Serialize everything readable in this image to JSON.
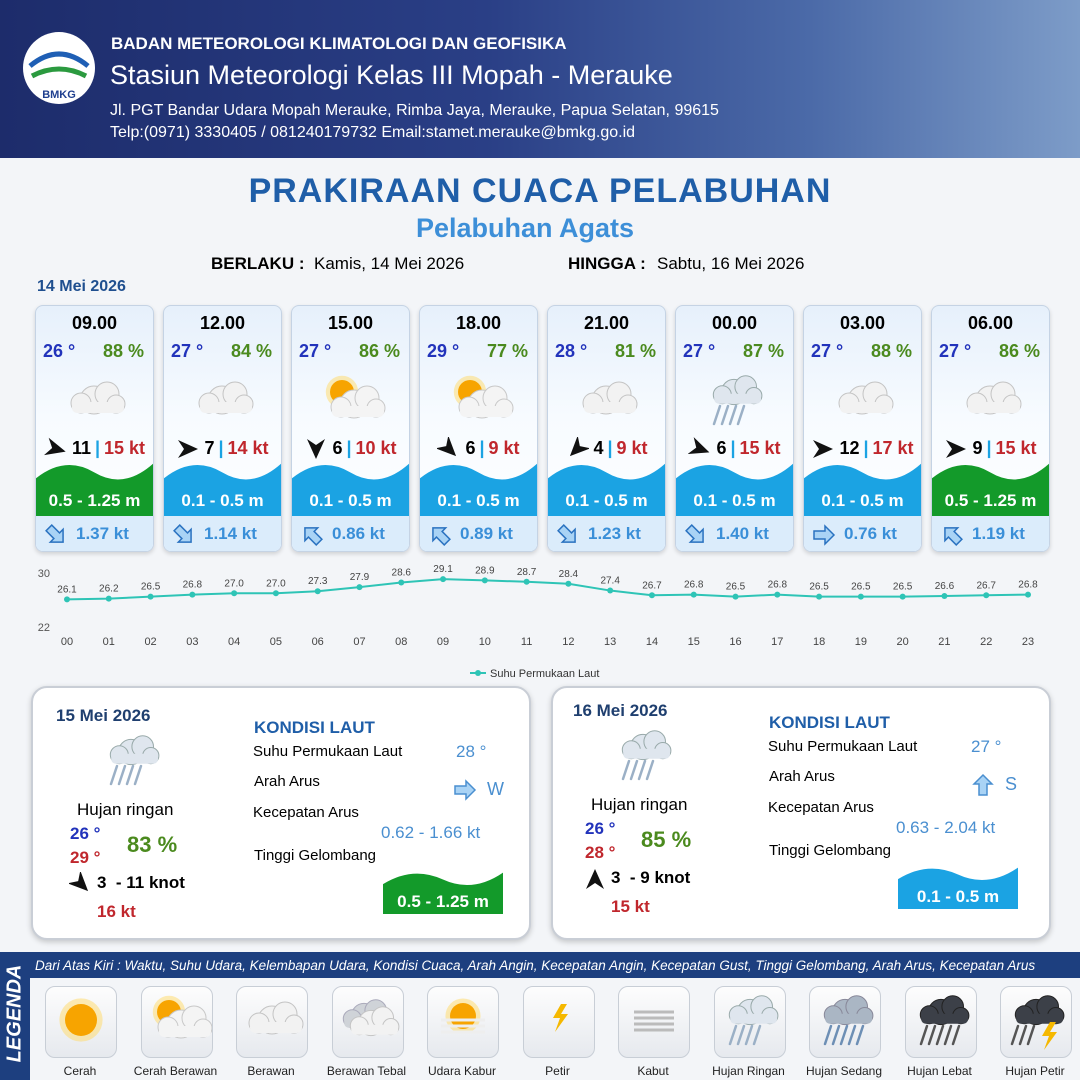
{
  "header": {
    "logo": "BMKG",
    "agency": "BADAN METEOROLOGI KLIMATOLOGI DAN GEOFISIKA",
    "station": "Stasiun Meteorologi Kelas III Mopah - Merauke",
    "address": "Jl. PGT Bandar Udara Mopah Merauke, Rimba Jaya, Merauke, Papua Selatan, 99615",
    "contact": "Telp:(0971) 3330405 / 081240179732  Email:stamet.merauke@bmkg.go.id"
  },
  "title": "PRAKIRAAN CUACA PELABUHAN",
  "subtitle": "Pelabuhan Agats",
  "validity": {
    "from_label": "BERLAKU :",
    "from": "Kamis, 14 Mei 2026",
    "to_label": "HINGGA :",
    "to": "Sabtu, 16 Mei 2026"
  },
  "day1": {
    "date": "14 Mei 2026",
    "slots": [
      {
        "time": "09.00",
        "temp": "26 °",
        "humidity": "88 %",
        "wind": 11,
        "gust": "15 kt",
        "wave": "0.5 - 1.25 m",
        "current": "1.37 kt"
      },
      {
        "time": "12.00",
        "temp": "27 °",
        "humidity": "84 %",
        "wind": 7,
        "gust": "14 kt",
        "wave": "0.1 - 0.5 m",
        "current": "1.14 kt"
      },
      {
        "time": "15.00",
        "temp": "27 °",
        "humidity": "86 %",
        "wind": 6,
        "gust": "10 kt",
        "wave": "0.1 - 0.5 m",
        "current": "0.86 kt"
      },
      {
        "time": "18.00",
        "temp": "29 °",
        "humidity": "77 %",
        "wind": 6,
        "gust": "9 kt",
        "wave": "0.1 - 0.5 m",
        "current": "0.89 kt"
      },
      {
        "time": "21.00",
        "temp": "28 °",
        "humidity": "81 %",
        "wind": 4,
        "gust": "9 kt",
        "wave": "0.1 - 0.5 m",
        "current": "1.23 kt"
      },
      {
        "time": "00.00",
        "temp": "27 °",
        "humidity": "87 %",
        "wind": 6,
        "gust": "15 kt",
        "wave": "0.1 - 0.5 m",
        "current": "1.40 kt"
      },
      {
        "time": "03.00",
        "temp": "27 °",
        "humidity": "88 %",
        "wind": 12,
        "gust": "17 kt",
        "wave": "0.1 - 0.5 m",
        "current": "0.76 kt"
      },
      {
        "time": "06.00",
        "temp": "27 °",
        "humidity": "86 %",
        "wind": 9,
        "gust": "15 kt",
        "wave": "0.5 - 1.25 m",
        "current": "1.19 kt"
      }
    ]
  },
  "chart_data": {
    "type": "line",
    "categories": [
      "00",
      "01",
      "02",
      "03",
      "04",
      "05",
      "06",
      "07",
      "08",
      "09",
      "10",
      "11",
      "12",
      "13",
      "14",
      "15",
      "16",
      "17",
      "18",
      "19",
      "20",
      "21",
      "22",
      "23"
    ],
    "series": [
      {
        "name": "Suhu Permukaan Laut",
        "color": "#2ec4b6",
        "values": [
          26.1,
          26.2,
          26.5,
          26.8,
          27.0,
          27.0,
          27.3,
          27.9,
          28.6,
          29.1,
          28.9,
          28.7,
          28.4,
          27.4,
          26.7,
          26.8,
          26.5,
          26.8,
          26.5,
          26.5,
          26.5,
          26.6,
          26.7,
          26.8
        ],
        "value_labels": [
          "26.1",
          "26.2",
          "26.5",
          "26.8",
          "27.0",
          "27.0",
          "27.3",
          "27.9",
          "28.6",
          "29.1",
          "28.9",
          "28.7",
          "28.4",
          "27.4",
          "26.7",
          "26.8",
          "26.5",
          "26.8",
          "26.5",
          "26.5",
          "26.5",
          "26.6",
          "26.7",
          "26.8"
        ]
      }
    ],
    "ylim": [
      22,
      30
    ],
    "yticks": [
      22,
      30
    ]
  },
  "days": [
    {
      "date": "15 Mei 2026",
      "condition": "Hujan ringan",
      "temp_min": "26 °",
      "temp_max": "29 °",
      "humidity": "83 %",
      "wind": "3  - 11 knot",
      "gust": "16 kt",
      "sea_heading": "KONDISI LAUT",
      "sst_label": "Suhu Permukaan Laut",
      "sst": "28 °",
      "dir_label": "Arah Arus",
      "dir": "W",
      "speed_label": "Kecepatan Arus",
      "speed": "0.62 - 1.66 kt",
      "wave_label": "Tinggi Gelombang",
      "wave": "0.5 - 1.25 m"
    },
    {
      "date": "16 Mei 2026",
      "condition": "Hujan ringan",
      "temp_min": "26 °",
      "temp_max": "28 °",
      "humidity": "85 %",
      "wind": "3  - 9 knot",
      "gust": "15 kt",
      "sea_heading": "KONDISI LAUT",
      "sst_label": "Suhu Permukaan Laut",
      "sst": "27 °",
      "dir_label": "Arah Arus",
      "dir": "S",
      "speed_label": "Kecepatan Arus",
      "speed": "0.63 - 2.04 kt",
      "wave_label": "Tinggi Gelombang",
      "wave": "0.1 - 0.5 m"
    }
  ],
  "legend": {
    "title": "LEGENDA",
    "description": "Dari Atas Kiri : Waktu, Suhu Udara, Kelembapan Udara, Kondisi Cuaca, Arah Angin, Kecepatan Angin, Kecepatan Gust, Tinggi Gelombang, Arah Arus, Kecepatan Arus",
    "items": [
      "Cerah",
      "Cerah Berawan",
      "Berawan",
      "Berawan Tebal",
      "Udara Kabur",
      "Petir",
      "Kabut",
      "Hujan Ringan",
      "Hujan Sedang",
      "Hujan Lebat",
      "Hujan Petir"
    ]
  }
}
